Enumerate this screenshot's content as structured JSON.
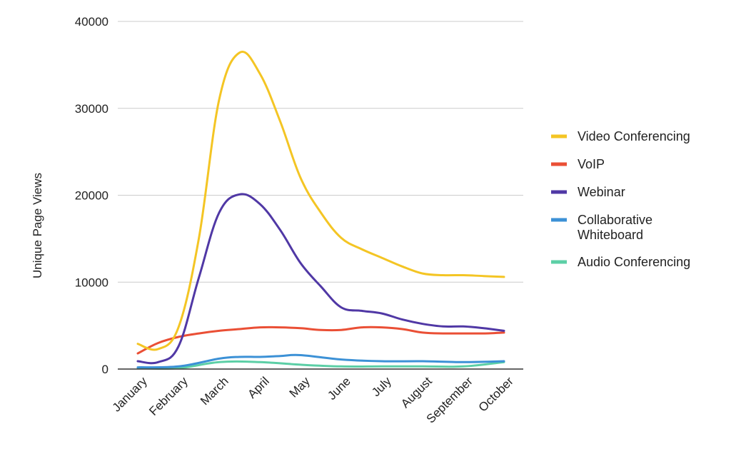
{
  "chart_data": {
    "type": "line",
    "title": "",
    "xlabel": "",
    "ylabel": "Unique Page Views",
    "ylim": [
      0,
      40000
    ],
    "yticks": [
      0,
      10000,
      20000,
      30000,
      40000
    ],
    "grid": true,
    "legend_position": "right",
    "categories": [
      "January",
      "February",
      "March",
      "April",
      "May",
      "June",
      "July",
      "August",
      "September",
      "October"
    ],
    "series": [
      {
        "name": "Video Conferencing",
        "color": "#f4c524",
        "x": [
          "January",
          "January-February",
          "February",
          "February-March",
          "March",
          "March-April",
          "April",
          "April-May",
          "May",
          "May-June",
          "June",
          "June-July",
          "July",
          "July-August",
          "August",
          "August-September",
          "September",
          "September-October",
          "October"
        ],
        "values": [
          2900,
          2300,
          4800,
          15000,
          31000,
          36400,
          34000,
          28500,
          22000,
          18000,
          15100,
          13800,
          12800,
          11800,
          11000,
          10800,
          10800,
          10700,
          10600
        ]
      },
      {
        "name": "VoIP",
        "color": "#ea4f35",
        "x": [
          "January",
          "January-February",
          "February",
          "February-March",
          "March",
          "March-April",
          "April",
          "April-May",
          "May",
          "May-June",
          "June",
          "June-July",
          "July",
          "July-August",
          "August",
          "August-September",
          "September",
          "September-October",
          "October"
        ],
        "values": [
          1800,
          3000,
          3700,
          4100,
          4400,
          4600,
          4800,
          4800,
          4700,
          4500,
          4500,
          4800,
          4800,
          4600,
          4200,
          4100,
          4100,
          4100,
          4200
        ]
      },
      {
        "name": "Webinar",
        "color": "#5038a5",
        "x": [
          "January",
          "January-February",
          "February",
          "February-March",
          "March",
          "March-April",
          "April",
          "April-May",
          "May",
          "May-June",
          "June",
          "June-July",
          "July",
          "July-August",
          "August",
          "August-September",
          "September",
          "September-October",
          "October"
        ],
        "values": [
          900,
          800,
          2600,
          10500,
          18000,
          20100,
          19000,
          16000,
          12200,
          9500,
          7100,
          6700,
          6400,
          5700,
          5200,
          4900,
          4900,
          4700,
          4400
        ]
      },
      {
        "name": "Collaborative Whiteboard",
        "color": "#3c91d6",
        "x": [
          "January",
          "February",
          "March",
          "March-April",
          "April",
          "April-May",
          "May",
          "June",
          "July",
          "August",
          "September",
          "October"
        ],
        "values": [
          200,
          300,
          1200,
          1400,
          1400,
          1500,
          1600,
          1100,
          900,
          900,
          800,
          900
        ]
      },
      {
        "name": "Audio Conferencing",
        "color": "#5ccfa6",
        "x": [
          "January",
          "February",
          "March",
          "April",
          "May",
          "June",
          "July",
          "August",
          "September",
          "October"
        ],
        "values": [
          100,
          100,
          800,
          800,
          500,
          300,
          300,
          300,
          300,
          800
        ]
      }
    ]
  }
}
